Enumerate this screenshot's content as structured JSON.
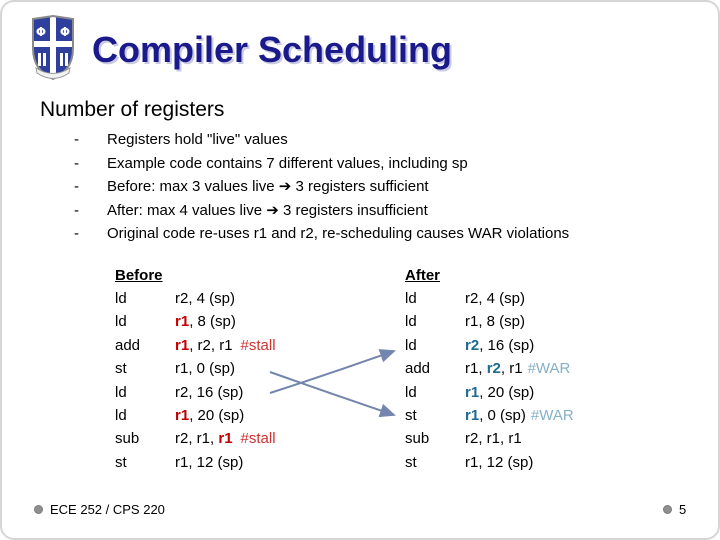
{
  "colors": {
    "title_navy": "#1a1a8c",
    "highlight_red": "#c00000",
    "stall_red": "#cc3333",
    "highlight_blue": "#1f6b8e",
    "war_blue": "#85afc7",
    "arrow_blue": "#7486ad",
    "footer_gray": "#8f8f8f"
  },
  "header": {
    "title": "Compiler Scheduling",
    "logo_icon": "duke-crest-icon"
  },
  "heading": "Number of registers",
  "bullets": [
    "Registers hold \"live\" values",
    "Example code contains 7 different values, including sp",
    "Before: max 3 values live ➔ 3 registers sufficient",
    "After: max 4 values live ➔ 3 registers insufficient",
    "Original code re-uses r1 and r2, re-scheduling causes WAR violations"
  ],
  "code_comparison": {
    "before": {
      "heading": "Before",
      "rows": [
        {
          "op": "ld",
          "parts": [
            {
              "t": "r2, 4 (sp)"
            }
          ]
        },
        {
          "op": "ld",
          "parts": [
            {
              "t": "r1",
              "s": "hr"
            },
            {
              "t": ", 8 (sp)"
            }
          ]
        },
        {
          "op": "add",
          "parts": [
            {
              "t": "r1",
              "s": "hr"
            },
            {
              "t": ", r2, r1"
            },
            {
              "t": "#stall",
              "s": "stall"
            }
          ]
        },
        {
          "op": "st",
          "parts": [
            {
              "t": "r1, 0 (sp)"
            }
          ]
        },
        {
          "op": "ld",
          "parts": [
            {
              "t": "r2, 16 (sp)"
            }
          ]
        },
        {
          "op": "ld",
          "parts": [
            {
              "t": "r1",
              "s": "hr"
            },
            {
              "t": ", 20 (sp)"
            }
          ]
        },
        {
          "op": "sub",
          "parts": [
            {
              "t": "r2, r1, "
            },
            {
              "t": "r1",
              "s": "hr"
            },
            {
              "t": "#stall",
              "s": "stall"
            }
          ]
        },
        {
          "op": "st",
          "parts": [
            {
              "t": "r1, 12 (sp)"
            }
          ]
        }
      ]
    },
    "after": {
      "heading": "After",
      "rows": [
        {
          "op": "ld",
          "parts": [
            {
              "t": "r2, 4 (sp)"
            }
          ]
        },
        {
          "op": "ld",
          "parts": [
            {
              "t": "r1, 8 (sp)"
            }
          ]
        },
        {
          "op": "ld",
          "parts": [
            {
              "t": "r2",
              "s": "hb"
            },
            {
              "t": ", 16 (sp)"
            }
          ]
        },
        {
          "op": "add",
          "parts": [
            {
              "t": "r1, "
            },
            {
              "t": "r2",
              "s": "hb"
            },
            {
              "t": ", r1"
            },
            {
              "t": "#WAR",
              "s": "war"
            }
          ]
        },
        {
          "op": "ld",
          "parts": [
            {
              "t": "r1",
              "s": "hb"
            },
            {
              "t": ", 20 (sp)"
            }
          ]
        },
        {
          "op": "st",
          "parts": [
            {
              "t": "r1",
              "s": "hb"
            },
            {
              "t": ", 0 (sp)"
            },
            {
              "t": "#WAR",
              "s": "war"
            }
          ]
        },
        {
          "op": "sub",
          "parts": [
            {
              "t": "r2, r1, r1"
            }
          ]
        },
        {
          "op": "st",
          "parts": [
            {
              "t": "r1, 12 (sp)"
            }
          ]
        }
      ]
    }
  },
  "footer": {
    "course": "ECE 252 / CPS 220",
    "page_number": "5"
  }
}
